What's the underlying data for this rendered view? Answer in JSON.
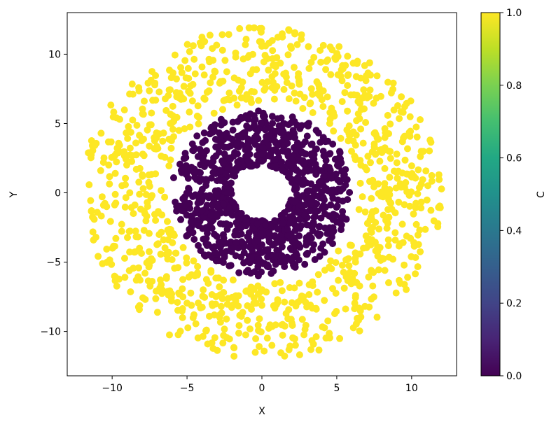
{
  "chart_data": {
    "type": "scatter",
    "title": "",
    "xlabel": "X",
    "ylabel": "Y",
    "xlim": [
      -13,
      13
    ],
    "ylim": [
      -13.2,
      13
    ],
    "xticks": [
      -10,
      -5,
      0,
      5,
      10
    ],
    "xtick_labels": [
      "−10",
      "−5",
      "0",
      "5",
      "10"
    ],
    "yticks": [
      -10,
      -5,
      0,
      5,
      10
    ],
    "ytick_labels": [
      "−10",
      "−5",
      "0",
      "5",
      "10"
    ],
    "grid": false,
    "legend": "none",
    "colorbar": {
      "label": "C",
      "colormap": "viridis",
      "range": [
        0.0,
        1.0
      ],
      "ticks": [
        0.0,
        0.2,
        0.4,
        0.6,
        0.8,
        1.0
      ],
      "tick_labels": [
        "0.0",
        "0.2",
        "0.4",
        "0.6",
        "0.8",
        "1.0"
      ]
    },
    "series": [
      {
        "c": 1.0,
        "color": "#fde725",
        "radius_range": [
          6.5,
          12
        ],
        "count": 1000
      },
      {
        "c": 0.0,
        "color": "#440154",
        "radius_range": [
          2,
          6
        ],
        "count": 1000
      }
    ]
  }
}
